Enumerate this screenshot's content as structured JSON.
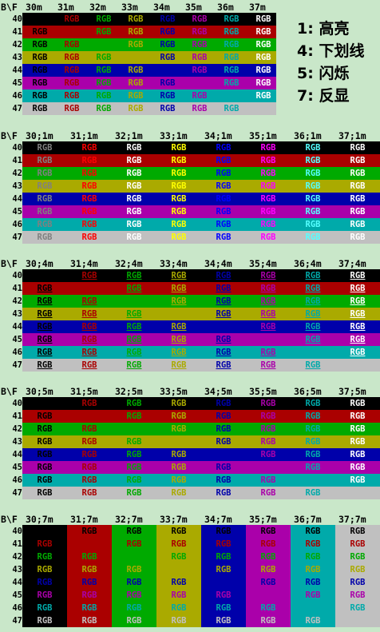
{
  "legend": [
    {
      "code": "1:",
      "label": "高亮"
    },
    {
      "code": "4:",
      "label": "下划线"
    },
    {
      "code": "5:",
      "label": "闪烁"
    },
    {
      "code": "7:",
      "label": "反显"
    }
  ],
  "corner_label": "B\\F",
  "cell_text": "RGB",
  "row_labels": [
    "40",
    "41",
    "42",
    "43",
    "44",
    "45",
    "46",
    "47"
  ],
  "colors": {
    "black": "#000000",
    "red": "#aa0000",
    "green": "#00aa00",
    "yellow": "#aaaa00",
    "blue": "#0000aa",
    "magenta": "#aa00aa",
    "cyan": "#00aaaa",
    "white": "#c0c0c0"
  },
  "bright_colors": {
    "black": "#808080",
    "red": "#ff0000",
    "green": "#ffffff",
    "yellow": "#ffff00",
    "blue": "#0000ff",
    "magenta": "#ff00ff",
    "cyan": "#55ffff",
    "white": "#ffffff"
  },
  "sections": [
    {
      "id": "plain",
      "columns": [
        "30m",
        "31m",
        "32m",
        "33m",
        "34m",
        "35m",
        "36m",
        "37m"
      ]
    },
    {
      "id": "bold",
      "columns": [
        "30;1m",
        "31;1m",
        "32;1m",
        "33;1m",
        "34;1m",
        "35;1m",
        "36;1m",
        "37;1m"
      ]
    },
    {
      "id": "underline",
      "columns": [
        "30;4m",
        "31;4m",
        "32;4m",
        "33;4m",
        "34;4m",
        "35;4m",
        "36;4m",
        "37;4m"
      ]
    },
    {
      "id": "blink",
      "columns": [
        "30;5m",
        "31;5m",
        "32;5m",
        "33;5m",
        "34;5m",
        "35;5m",
        "36;5m",
        "37;5m"
      ]
    },
    {
      "id": "reverse",
      "columns": [
        "30;7m",
        "31;7m",
        "32;7m",
        "33;7m",
        "34;7m",
        "35;7m",
        "36;7m",
        "37;7m"
      ]
    }
  ]
}
